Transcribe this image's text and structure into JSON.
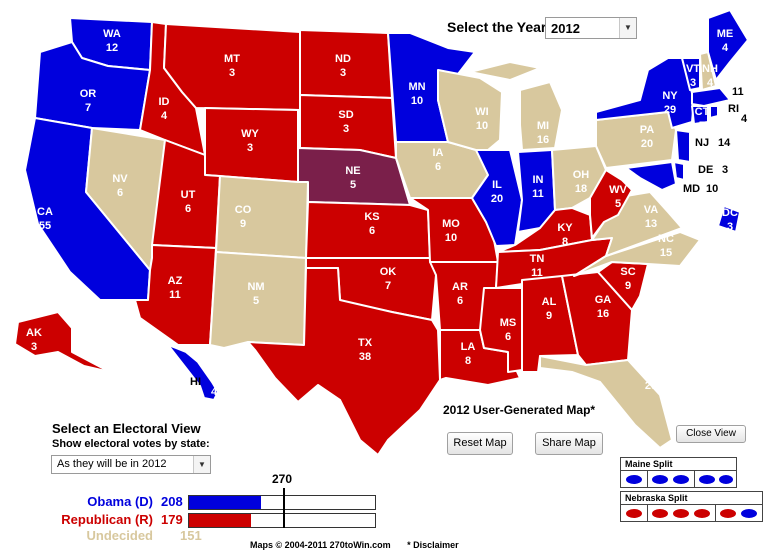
{
  "colors": {
    "dem": "#0000dd",
    "rep": "#cc0000",
    "undecided": "#d8c89e",
    "split": "#7a1f4a",
    "border": "#ffffff"
  },
  "header": {
    "select_year_label": "Select the Year",
    "year_value": "2012"
  },
  "states": [
    {
      "abbr": "WA",
      "votes": "12"
    },
    {
      "abbr": "OR",
      "votes": "7"
    },
    {
      "abbr": "CA",
      "votes": "55"
    },
    {
      "abbr": "NV",
      "votes": "6"
    },
    {
      "abbr": "ID",
      "votes": "4"
    },
    {
      "abbr": "MT",
      "votes": "3"
    },
    {
      "abbr": "WY",
      "votes": "3"
    },
    {
      "abbr": "UT",
      "votes": "6"
    },
    {
      "abbr": "AZ",
      "votes": "11"
    },
    {
      "abbr": "CO",
      "votes": "9"
    },
    {
      "abbr": "NM",
      "votes": "5"
    },
    {
      "abbr": "ND",
      "votes": "3"
    },
    {
      "abbr": "SD",
      "votes": "3"
    },
    {
      "abbr": "NE",
      "votes": "5"
    },
    {
      "abbr": "KS",
      "votes": "6"
    },
    {
      "abbr": "OK",
      "votes": "7"
    },
    {
      "abbr": "TX",
      "votes": "38"
    },
    {
      "abbr": "MN",
      "votes": "10"
    },
    {
      "abbr": "IA",
      "votes": "6"
    },
    {
      "abbr": "MO",
      "votes": "10"
    },
    {
      "abbr": "AR",
      "votes": "6"
    },
    {
      "abbr": "LA",
      "votes": "8"
    },
    {
      "abbr": "WI",
      "votes": "10"
    },
    {
      "abbr": "IL",
      "votes": "20"
    },
    {
      "abbr": "MS",
      "votes": "6"
    },
    {
      "abbr": "MI",
      "votes": "16"
    },
    {
      "abbr": "IN",
      "votes": "11"
    },
    {
      "abbr": "OH",
      "votes": "18"
    },
    {
      "abbr": "KY",
      "votes": "8"
    },
    {
      "abbr": "TN",
      "votes": "11"
    },
    {
      "abbr": "AL",
      "votes": "9"
    },
    {
      "abbr": "GA",
      "votes": "16"
    },
    {
      "abbr": "FL",
      "votes": "29"
    },
    {
      "abbr": "SC",
      "votes": "9"
    },
    {
      "abbr": "NC",
      "votes": "15"
    },
    {
      "abbr": "VA",
      "votes": "13"
    },
    {
      "abbr": "WV",
      "votes": "5"
    },
    {
      "abbr": "PA",
      "votes": "20"
    },
    {
      "abbr": "NY",
      "votes": "29"
    },
    {
      "abbr": "VT",
      "votes": "3"
    },
    {
      "abbr": "NH",
      "votes": "4"
    },
    {
      "abbr": "ME",
      "votes": "4"
    },
    {
      "abbr": "MA",
      "votes": "11"
    },
    {
      "abbr": "RI",
      "votes": "4"
    },
    {
      "abbr": "CT",
      "votes": "7"
    },
    {
      "abbr": "NJ",
      "votes": "14"
    },
    {
      "abbr": "DE",
      "votes": "3"
    },
    {
      "abbr": "MD",
      "votes": "10"
    },
    {
      "abbr": "DC",
      "votes": "3"
    },
    {
      "abbr": "AK",
      "votes": "3"
    },
    {
      "abbr": "HI",
      "votes": "4"
    }
  ],
  "map_title": "2012 User-Generated Map*",
  "buttons": {
    "reset": "Reset Map",
    "share": "Share Map",
    "close_view": "Close View"
  },
  "electoral_view": {
    "title": "Select an Electoral View",
    "subtitle": "Show electoral votes by state:",
    "selected": "As they will be in 2012"
  },
  "tally": {
    "threshold": "270",
    "obama": {
      "label": "Obama (D)",
      "votes": "208",
      "fraction": 0.3865
    },
    "republican": {
      "label": "Republican (R)",
      "votes": "179",
      "fraction": 0.3327
    },
    "undecided": {
      "label": "Undecided",
      "votes": "151"
    }
  },
  "splits": {
    "maine": "Maine Split",
    "nebraska": "Nebraska Split"
  },
  "footer": {
    "text": "Maps © 2004-2011 270toWin.com",
    "disclaimer": "* Disclaimer"
  }
}
